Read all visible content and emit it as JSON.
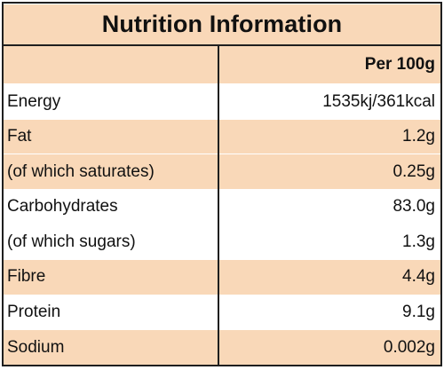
{
  "title": "Nutrition Information",
  "column_header": "Per 100g",
  "rows": [
    {
      "label": "Energy",
      "value": "1535kj/361kcal"
    },
    {
      "label": "Fat",
      "value": "1.2g"
    },
    {
      "label": "(of which saturates)",
      "value": "0.25g"
    },
    {
      "label": "Carbohydrates",
      "value": "83.0g"
    },
    {
      "label": "(of which sugars)",
      "value": "1.3g"
    },
    {
      "label": "Fibre",
      "value": "4.4g"
    },
    {
      "label": "Protein",
      "value": "9.1g"
    },
    {
      "label": "Sodium",
      "value": "0.002g"
    }
  ],
  "colors": {
    "shade": "#f9d8b8",
    "border": "#1f1f1f"
  }
}
